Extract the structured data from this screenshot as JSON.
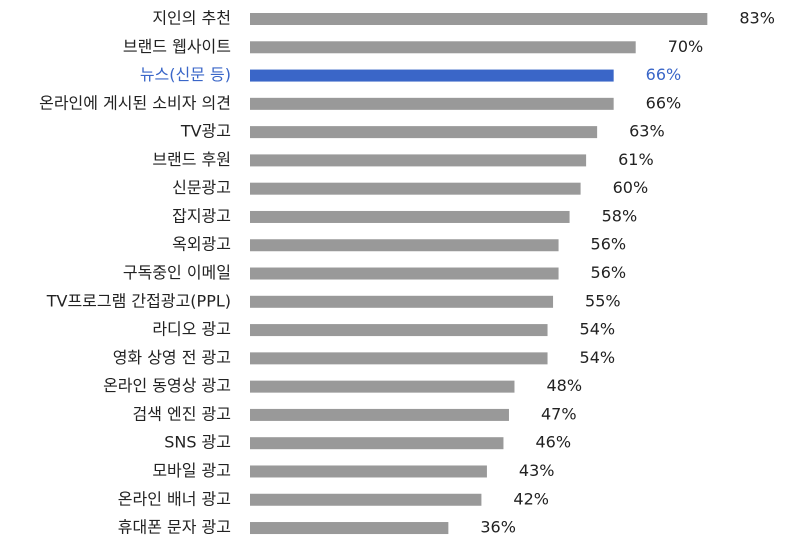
{
  "chart_data": {
    "type": "bar",
    "categories": [
      "지인의 추천",
      "브랜드 웹사이트",
      "뉴스(신문 등)",
      "온라인에 게시된 소비자 의견",
      "TV광고",
      "브랜드 후원",
      "신문광고",
      "잡지광고",
      "옥외광고",
      "구독중인 이메일",
      "TV프로그램 간접광고(PPL)",
      "라디오 광고",
      "영화 상영 전 광고",
      "온라인 동영상 광고",
      "검색 엔진 광고",
      "SNS 광고",
      "모바일 광고",
      "온라인 배너 광고",
      "휴대폰 문자 광고"
    ],
    "values": [
      83,
      70,
      66,
      66,
      63,
      61,
      60,
      58,
      56,
      56,
      55,
      54,
      54,
      48,
      47,
      46,
      43,
      42,
      36
    ],
    "value_labels": [
      "83%",
      "70%",
      "66%",
      "66%",
      "63%",
      "61%",
      "60%",
      "58%",
      "56%",
      "56%",
      "55%",
      "54%",
      "54%",
      "48%",
      "47%",
      "46%",
      "43%",
      "42%",
      "36%"
    ],
    "colors": [
      "#999999",
      "#999999",
      "#3a66c8",
      "#999999",
      "#999999",
      "#999999",
      "#999999",
      "#999999",
      "#999999",
      "#999999",
      "#999999",
      "#999999",
      "#999999",
      "#999999",
      "#999999",
      "#999999",
      "#999999",
      "#999999",
      "#999999"
    ]
  }
}
